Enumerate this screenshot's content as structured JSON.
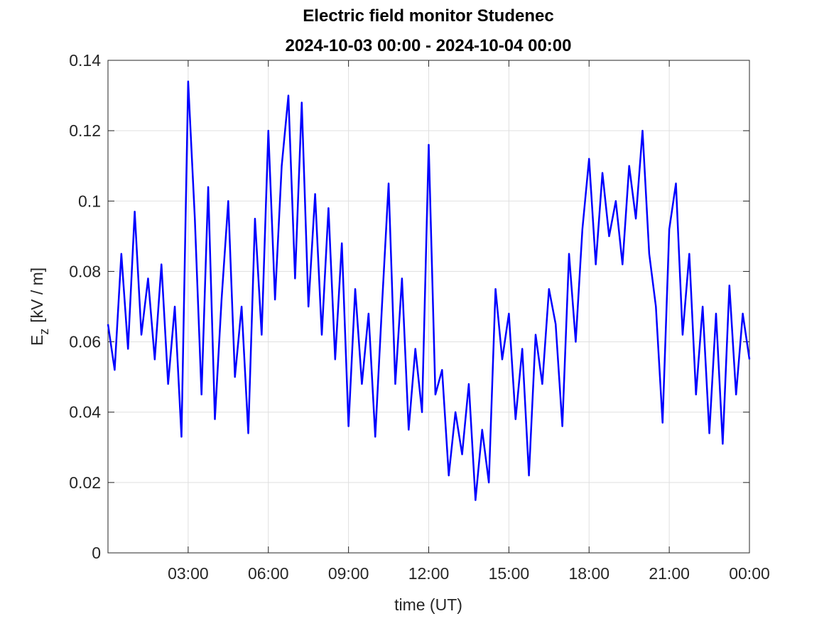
{
  "chart_data": {
    "type": "line",
    "title": "Electric field monitor Studenec",
    "subtitle": "2024-10-03 00:00 - 2024-10-04 00:00",
    "xlabel": "time (UT)",
    "ylabel": "E",
    "ylabel_subscript": "z",
    "ylabel_unit": "[kV / m]",
    "x": [
      0,
      0.25,
      0.5,
      0.75,
      1,
      1.25,
      1.5,
      1.75,
      2,
      2.25,
      2.5,
      2.75,
      3,
      3.25,
      3.5,
      3.75,
      4,
      4.25,
      4.5,
      4.75,
      5,
      5.25,
      5.5,
      5.75,
      6,
      6.25,
      6.5,
      6.75,
      7,
      7.25,
      7.5,
      7.75,
      8,
      8.25,
      8.5,
      8.75,
      9,
      9.25,
      9.5,
      9.75,
      10,
      10.25,
      10.5,
      10.75,
      11,
      11.25,
      11.5,
      11.75,
      12,
      12.25,
      12.5,
      12.75,
      13,
      13.25,
      13.5,
      13.75,
      14,
      14.25,
      14.5,
      14.75,
      15,
      15.25,
      15.5,
      15.75,
      16,
      16.25,
      16.5,
      16.75,
      17,
      17.25,
      17.5,
      17.75,
      18,
      18.25,
      18.5,
      18.75,
      19,
      19.25,
      19.5,
      19.75,
      20,
      20.25,
      20.5,
      20.75,
      21,
      21.25,
      21.5,
      21.75,
      22,
      22.25,
      22.5,
      22.75,
      23,
      23.25,
      23.5,
      23.75,
      24
    ],
    "series": [
      {
        "name": "Ez",
        "color": "#0000ff",
        "values": [
          0.065,
          0.052,
          0.085,
          0.058,
          0.097,
          0.062,
          0.078,
          0.055,
          0.082,
          0.048,
          0.07,
          0.033,
          0.134,
          0.095,
          0.045,
          0.104,
          0.038,
          0.072,
          0.1,
          0.05,
          0.07,
          0.034,
          0.095,
          0.062,
          0.12,
          0.072,
          0.11,
          0.13,
          0.078,
          0.128,
          0.07,
          0.102,
          0.062,
          0.098,
          0.055,
          0.088,
          0.036,
          0.075,
          0.048,
          0.068,
          0.033,
          0.07,
          0.105,
          0.048,
          0.078,
          0.035,
          0.058,
          0.04,
          0.116,
          0.045,
          0.052,
          0.022,
          0.04,
          0.028,
          0.048,
          0.015,
          0.035,
          0.02,
          0.075,
          0.055,
          0.068,
          0.038,
          0.058,
          0.022,
          0.062,
          0.048,
          0.075,
          0.065,
          0.036,
          0.085,
          0.06,
          0.092,
          0.112,
          0.082,
          0.108,
          0.09,
          0.1,
          0.082,
          0.11,
          0.095,
          0.12,
          0.085,
          0.07,
          0.037,
          0.092,
          0.105,
          0.062,
          0.085,
          0.045,
          0.07,
          0.034,
          0.068,
          0.031,
          0.076,
          0.045,
          0.068,
          0.055
        ]
      }
    ],
    "xlim": [
      0,
      24
    ],
    "xticks": [
      {
        "value": 3,
        "label": "03:00"
      },
      {
        "value": 6,
        "label": "06:00"
      },
      {
        "value": 9,
        "label": "09:00"
      },
      {
        "value": 12,
        "label": "12:00"
      },
      {
        "value": 15,
        "label": "15:00"
      },
      {
        "value": 18,
        "label": "18:00"
      },
      {
        "value": 21,
        "label": "21:00"
      },
      {
        "value": 24,
        "label": "00:00"
      }
    ],
    "ylim": [
      0,
      0.14
    ],
    "yticks": [
      0,
      0.02,
      0.04,
      0.06,
      0.08,
      0.1,
      0.12,
      0.14
    ],
    "grid": true
  }
}
